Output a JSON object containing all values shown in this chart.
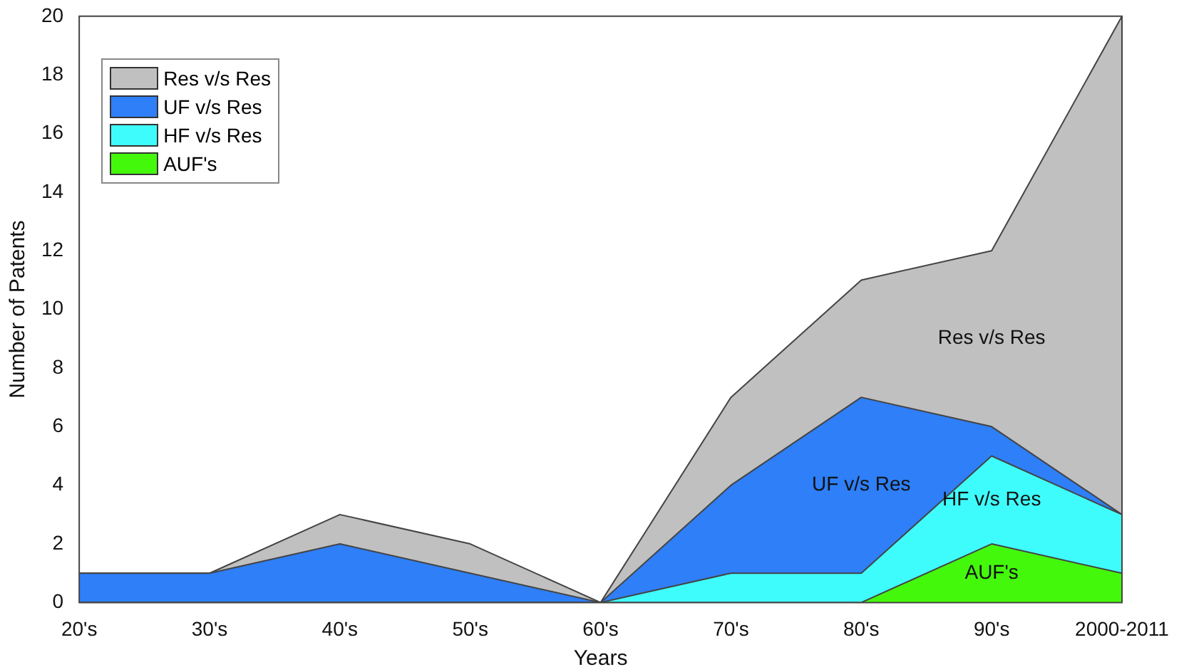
{
  "chart_data": {
    "type": "area",
    "stacked": true,
    "xlabel": "Years",
    "ylabel": "Number of Patents",
    "categories": [
      "20's",
      "30's",
      "40's",
      "50's",
      "60's",
      "70's",
      "80's",
      "90's",
      "2000-2011"
    ],
    "series": [
      {
        "name": "AUF's",
        "color": "#44f80c",
        "values": [
          0,
          0,
          0,
          0,
          0,
          0,
          0,
          2,
          1
        ]
      },
      {
        "name": "HF v/s Res",
        "color": "#3ffcfc",
        "values": [
          0,
          0,
          0,
          0,
          0,
          1,
          1,
          3,
          2
        ]
      },
      {
        "name": "UF v/s Res",
        "color": "#2e7ff8",
        "values": [
          1,
          1,
          2,
          1,
          0,
          3,
          6,
          1,
          0
        ]
      },
      {
        "name": "Res v/s Res",
        "color": "#c0c0c0",
        "values": [
          0,
          0,
          1,
          1,
          0,
          3,
          4,
          6,
          17
        ]
      }
    ],
    "ylim": [
      0,
      20
    ],
    "yticks": [
      0,
      2,
      4,
      6,
      8,
      10,
      12,
      14,
      16,
      18,
      20
    ],
    "grid": false,
    "legend": "top left",
    "annotations": [
      "Res v/s Res",
      "UF v/s Res",
      "HF v/s Res",
      "AUF's"
    ]
  }
}
